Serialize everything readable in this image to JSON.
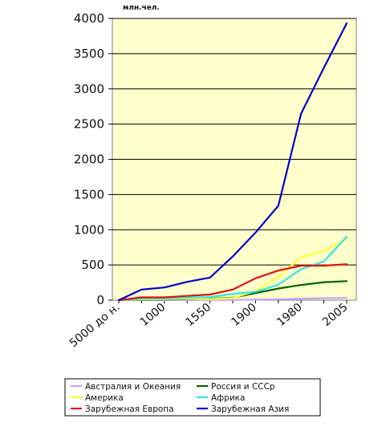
{
  "chart_data": {
    "type": "line",
    "unit_label": "млн.чел.",
    "categories": [
      "5000 до н.",
      "",
      "1000",
      "",
      "1550",
      "",
      "1900",
      "",
      "1980",
      "",
      "2005"
    ],
    "x_tick_labels": [
      "5000 до н.",
      "1000",
      "1550",
      "1900",
      "1980",
      "2005"
    ],
    "y_ticks": [
      0,
      500,
      1000,
      1500,
      2000,
      2500,
      3000,
      3500,
      4000
    ],
    "ylim": [
      0,
      4000
    ],
    "grid": true,
    "legend_position": "bottom",
    "series": [
      {
        "name": "Австралия и Океания",
        "color": "#c8a2ff",
        "values": [
          0,
          1,
          1,
          2,
          2,
          3,
          8,
          14,
          22,
          28,
          32
        ]
      },
      {
        "name": "Россия и СССр",
        "color": "#006400",
        "values": [
          0,
          5,
          10,
          15,
          20,
          35,
          100,
          165,
          215,
          255,
          270
        ]
      },
      {
        "name": "Америка",
        "color": "#ffff33",
        "values": [
          0,
          10,
          15,
          20,
          15,
          30,
          130,
          330,
          610,
          700,
          870
        ]
      },
      {
        "name": "Африка",
        "color": "#33e6e6",
        "values": [
          0,
          20,
          25,
          35,
          45,
          90,
          120,
          220,
          440,
          550,
          900
        ]
      },
      {
        "name": "Зарубежная Европа",
        "color": "#e01010",
        "values": [
          0,
          40,
          40,
          60,
          80,
          150,
          310,
          420,
          490,
          490,
          510
        ]
      },
      {
        "name": "Зарубежная Азия",
        "color": "#0000cc",
        "values": [
          0,
          150,
          180,
          260,
          320,
          620,
          960,
          1340,
          2650,
          3300,
          3930
        ]
      }
    ]
  }
}
